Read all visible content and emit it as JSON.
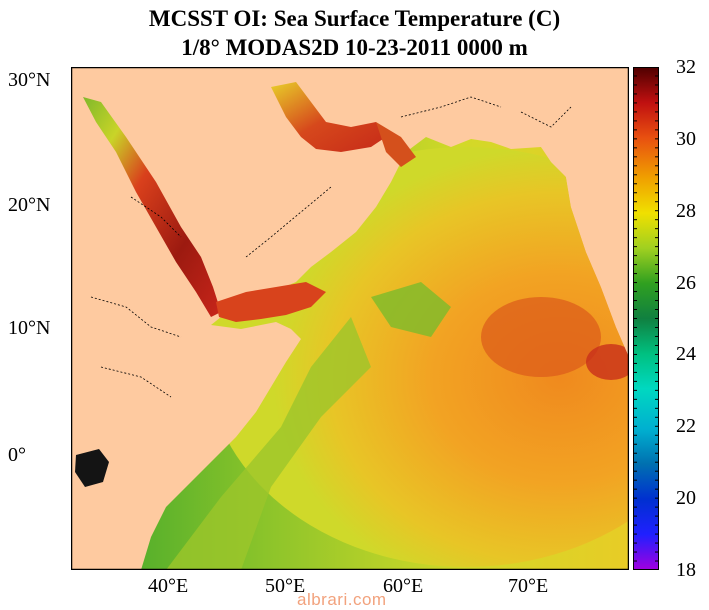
{
  "title_line1": "MCSST OI:  Sea Surface Temperature (C)",
  "title_line2": "1/8° MODAS2D 10-23-2011 0000 m",
  "lat_ticks": [
    "30°N",
    "20°N",
    "10°N",
    "0°"
  ],
  "lon_ticks": [
    "40°E",
    "50°E",
    "60°E",
    "70°E"
  ],
  "colorbar": {
    "unit": "C",
    "range": [
      18,
      32
    ],
    "labels": [
      "32",
      "30",
      "28",
      "26",
      "24",
      "22",
      "20",
      "18"
    ]
  },
  "colors": {
    "land": "#fecaa0",
    "sst_cold": "#a000e0",
    "sst_warm": "#5a0000"
  },
  "watermark": "albrari.com"
}
